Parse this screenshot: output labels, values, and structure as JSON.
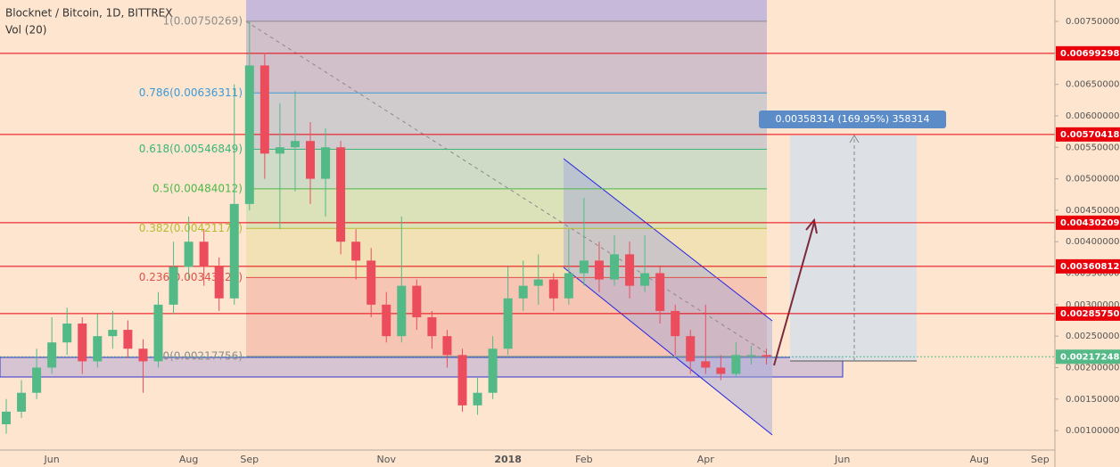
{
  "chart_data": {
    "type": "candlestick",
    "title": "Blocknet / Bitcoin, 1D, BITTREX",
    "indicator": "Vol (20)",
    "categories": [
      null,
      null,
      null,
      "Jun",
      null,
      null,
      null,
      null,
      null,
      null,
      null,
      null,
      "Aug",
      null,
      null,
      null,
      "Sep",
      null,
      null,
      null,
      null,
      null,
      null,
      null,
      null,
      "Nov",
      null,
      null,
      null,
      null,
      null,
      null,
      null,
      "2018",
      null,
      null,
      null,
      null,
      "Feb",
      null,
      null,
      null,
      null,
      null,
      null,
      null,
      "Apr",
      null,
      null,
      null,
      null,
      null,
      null,
      null,
      null,
      "Jun",
      null,
      null,
      null,
      null,
      null,
      null,
      null,
      null,
      "Aug",
      null,
      null,
      null,
      "Sep",
      null
    ],
    "open": [
      0.0011,
      0.0013,
      0.0016,
      0.002,
      0.0024,
      0.0027,
      0.0021,
      0.0025,
      0.0026,
      0.0023,
      0.0021,
      0.003,
      0.0036,
      0.004,
      0.0036,
      0.0031,
      0.0046,
      0.0068,
      0.0054,
      0.0055,
      0.0056,
      0.005,
      0.0055,
      0.004,
      0.0037,
      0.003,
      0.0025,
      0.0033,
      0.0028,
      0.0025,
      0.0022,
      0.0014,
      0.0016,
      0.0023,
      0.0031,
      0.0033,
      0.0034,
      0.0031,
      0.0035,
      0.0037,
      0.0034,
      0.0038,
      0.0033,
      0.0035,
      0.0029,
      0.0025,
      0.0021,
      0.002,
      0.0019,
      0.0022,
      0.0022,
      null,
      null,
      null,
      null,
      null,
      null,
      null,
      null,
      null,
      null,
      null,
      null,
      null,
      null,
      null,
      null,
      null,
      null,
      null
    ],
    "high": [
      0.0015,
      0.0018,
      0.0023,
      0.0028,
      0.00295,
      0.0028,
      0.00285,
      0.0029,
      0.00275,
      0.00245,
      0.0032,
      0.004,
      0.0044,
      0.0042,
      0.00375,
      0.0065,
      0.0075,
      0.007,
      0.0062,
      0.0064,
      0.0059,
      0.0058,
      0.0056,
      0.0042,
      0.0039,
      0.0032,
      0.0044,
      0.0034,
      0.0029,
      0.0026,
      0.0023,
      0.00185,
      0.0025,
      0.0036,
      0.0037,
      0.0038,
      0.0035,
      0.0042,
      0.0047,
      0.004,
      0.0041,
      0.004,
      0.0041,
      0.0036,
      0.003,
      0.0026,
      0.003,
      0.0022,
      0.0024,
      0.00235,
      0.0023,
      null,
      null,
      null,
      null,
      null,
      null,
      null,
      null,
      null,
      null,
      null,
      null,
      null,
      null,
      null,
      null,
      null,
      null,
      null
    ],
    "low": [
      0.00095,
      0.0012,
      0.0015,
      0.0019,
      0.0022,
      0.0019,
      0.002,
      0.0023,
      0.00215,
      0.0016,
      0.002,
      0.00285,
      0.0034,
      0.0033,
      0.0029,
      0.003,
      0.0045,
      0.005,
      0.0042,
      0.0048,
      0.0046,
      0.0044,
      0.0038,
      0.0034,
      0.0028,
      0.0024,
      0.0024,
      0.0026,
      0.0023,
      0.002,
      0.0013,
      0.00125,
      0.0015,
      0.0022,
      0.0029,
      0.003,
      0.0029,
      0.003,
      0.0033,
      0.0032,
      0.0033,
      0.0031,
      0.0032,
      0.0027,
      0.0022,
      0.0019,
      0.0019,
      0.0018,
      0.00185,
      0.00205,
      0.00205,
      null,
      null,
      null,
      null,
      null,
      null,
      null,
      null,
      null,
      null,
      null,
      null,
      null,
      null,
      null,
      null,
      null,
      null,
      null
    ],
    "close": [
      0.0013,
      0.0016,
      0.002,
      0.0024,
      0.0027,
      0.0021,
      0.0025,
      0.0026,
      0.0023,
      0.0021,
      0.003,
      0.0036,
      0.004,
      0.0036,
      0.0031,
      0.0046,
      0.0068,
      0.0054,
      0.0055,
      0.0056,
      0.005,
      0.0055,
      0.004,
      0.0037,
      0.003,
      0.0025,
      0.0033,
      0.0028,
      0.0025,
      0.0022,
      0.0014,
      0.0016,
      0.0023,
      0.0031,
      0.0033,
      0.0034,
      0.0031,
      0.0035,
      0.0037,
      0.0034,
      0.0038,
      0.0033,
      0.0035,
      0.0029,
      0.0025,
      0.0021,
      0.002,
      0.0019,
      0.0022,
      0.0022,
      0.00217248,
      null,
      null,
      null,
      null,
      null,
      null,
      null,
      null,
      null,
      null,
      null,
      null,
      null,
      null,
      null,
      null,
      null,
      null,
      null
    ],
    "colors": {
      "up": "#53b987",
      "down": "#eb4d5c"
    },
    "ylim": [
      0.00069,
      0.00784
    ],
    "yticks": [
      {
        "value": 0.001,
        "label": "0.00100000"
      },
      {
        "value": 0.0015,
        "label": "0.00150000"
      },
      {
        "value": 0.002,
        "label": "0.00200000"
      },
      {
        "value": 0.0025,
        "label": "0.00250000"
      },
      {
        "value": 0.003,
        "label": "0.00300000"
      },
      {
        "value": 0.0035,
        "label": "0.00350000"
      },
      {
        "value": 0.004,
        "label": "0.00400000"
      },
      {
        "value": 0.0045,
        "label": "0.00450000"
      },
      {
        "value": 0.005,
        "label": "0.00500000"
      },
      {
        "value": 0.0055,
        "label": "0.00550000"
      },
      {
        "value": 0.006,
        "label": "0.00600000"
      },
      {
        "value": 0.0065,
        "label": "0.00650000"
      },
      {
        "value": 0.007,
        "label": "0.00700000"
      },
      {
        "value": 0.0075,
        "label": "0.00750000"
      }
    ],
    "levels": [
      {
        "value": 0.00699298,
        "label": "0.00699298",
        "color": "#e8000b"
      },
      {
        "value": 0.00570418,
        "label": "0.00570418",
        "color": "#e8000b"
      },
      {
        "value": 0.00430209,
        "label": "0.00430209",
        "color": "#e8000b"
      },
      {
        "value": 0.00360812,
        "label": "0.00360812",
        "color": "#e8000b"
      },
      {
        "value": 0.0028575,
        "label": "0.00285750",
        "color": "#e8000b"
      }
    ],
    "last_price": {
      "value": 0.00217248,
      "label": "0.00217248",
      "color": "#53b987"
    },
    "fib": [
      {
        "value": 0.00750269,
        "label": "1(0.00750269)",
        "color": "#8c8c8c",
        "fill": "#c9b8c8"
      },
      {
        "value": 0.00636311,
        "label": "0.786(0.00636311)",
        "color": "#3d9ad6",
        "fill": "#c8c8cc"
      },
      {
        "value": 0.00546849,
        "label": "0.618(0.00546849)",
        "color": "#3bb57a",
        "fill": "#c7d8c5"
      },
      {
        "value": 0.00484012,
        "label": "0.5(0.00484012)",
        "color": "#4cb848",
        "fill": "#d5e0b4"
      },
      {
        "value": 0.00421176,
        "label": "0.382(0.00421176)",
        "color": "#b5bd2e",
        "fill": "#f1e1b1"
      },
      {
        "value": 0.00343129,
        "label": "0.236(0.00343129)",
        "color": "#e0504a",
        "fill": "#f4bfae"
      },
      {
        "value": 0.00217756,
        "label": "0(0.00217756)",
        "color": "#8c8c8c",
        "fill": "#f4bfae"
      }
    ],
    "measure": "0.00358314 (169.95%) 358314"
  }
}
